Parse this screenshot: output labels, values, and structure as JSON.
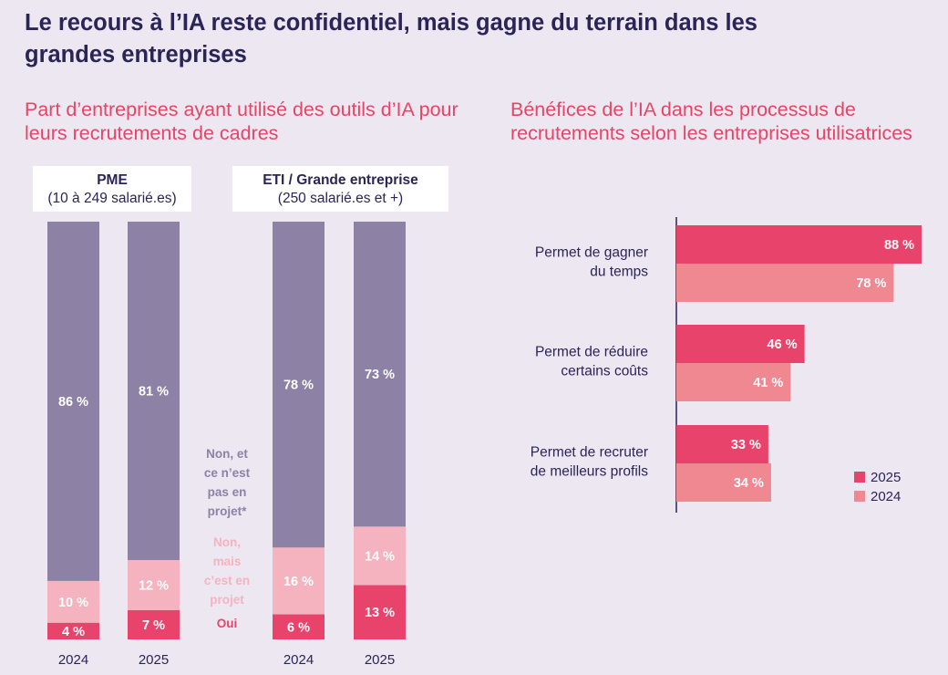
{
  "title": "Le recours à l’IA reste confidentiel, mais gagne du terrain dans les grandes entreprises",
  "colors": {
    "oui": "#e8436a",
    "projet": "#f5b3bf",
    "non": "#8d82a6",
    "title": "#2b2456",
    "accent": "#e84466",
    "bar2025": "#e8436a",
    "bar2024": "#f08891"
  },
  "chart_data": [
    {
      "type": "bar",
      "stacked": true,
      "title": "Part d’entreprises ayant utilisé des outils d’IA pour leurs recrutements de cadres",
      "groups": [
        {
          "name": "PME",
          "sub": "(10 à 249 salarié.es)",
          "categories": [
            "2024",
            "2025"
          ]
        },
        {
          "name": "ETI / Grande entreprise",
          "sub": "(250 salarié.es et +)",
          "categories": [
            "2024",
            "2025"
          ]
        }
      ],
      "categories": [
        "2024",
        "2025",
        "2024",
        "2025"
      ],
      "series": [
        {
          "name": "Oui",
          "values": [
            4,
            7,
            6,
            13
          ],
          "labels": [
            "4 %",
            "7 %",
            "6 %",
            "13 %"
          ]
        },
        {
          "name": "Non, mais c’est en projet",
          "values": [
            10,
            12,
            16,
            14
          ],
          "labels": [
            "10 %",
            "12 %",
            "16 %",
            "14 %"
          ]
        },
        {
          "name": "Non, et ce n’est pas en projet*",
          "values": [
            86,
            81,
            78,
            73
          ],
          "labels": [
            "86 %",
            "81 %",
            "78 %",
            "73 %"
          ]
        }
      ],
      "legend_lines": {
        "non": [
          "Non, et",
          "ce n’est",
          "pas en",
          "projet*"
        ],
        "projet": [
          "Non,",
          "mais",
          "c’est en",
          "projet"
        ],
        "oui": [
          "Oui"
        ]
      },
      "ylim": [
        0,
        100
      ]
    },
    {
      "type": "bar",
      "orientation": "horizontal",
      "title": "Bénéfices de l’IA dans les processus de recrutements selon les entreprises utilisatrices",
      "categories": [
        "Permet de gagner du temps",
        "Permet de réduire certains coûts",
        "Permet de recruter de meilleurs profils"
      ],
      "category_lines": [
        [
          "Permet de gagner",
          "du temps"
        ],
        [
          "Permet de réduire",
          "certains coûts"
        ],
        [
          "Permet de recruter",
          "de meilleurs profils"
        ]
      ],
      "series": [
        {
          "name": "2025",
          "values": [
            88,
            46,
            33
          ],
          "labels": [
            "88 %",
            "46 %",
            "33 %"
          ]
        },
        {
          "name": "2024",
          "values": [
            78,
            41,
            34
          ],
          "labels": [
            "78 %",
            "41 %",
            "34 %"
          ]
        }
      ],
      "legend_position": "bottom-right",
      "xlim": [
        0,
        100
      ]
    }
  ]
}
